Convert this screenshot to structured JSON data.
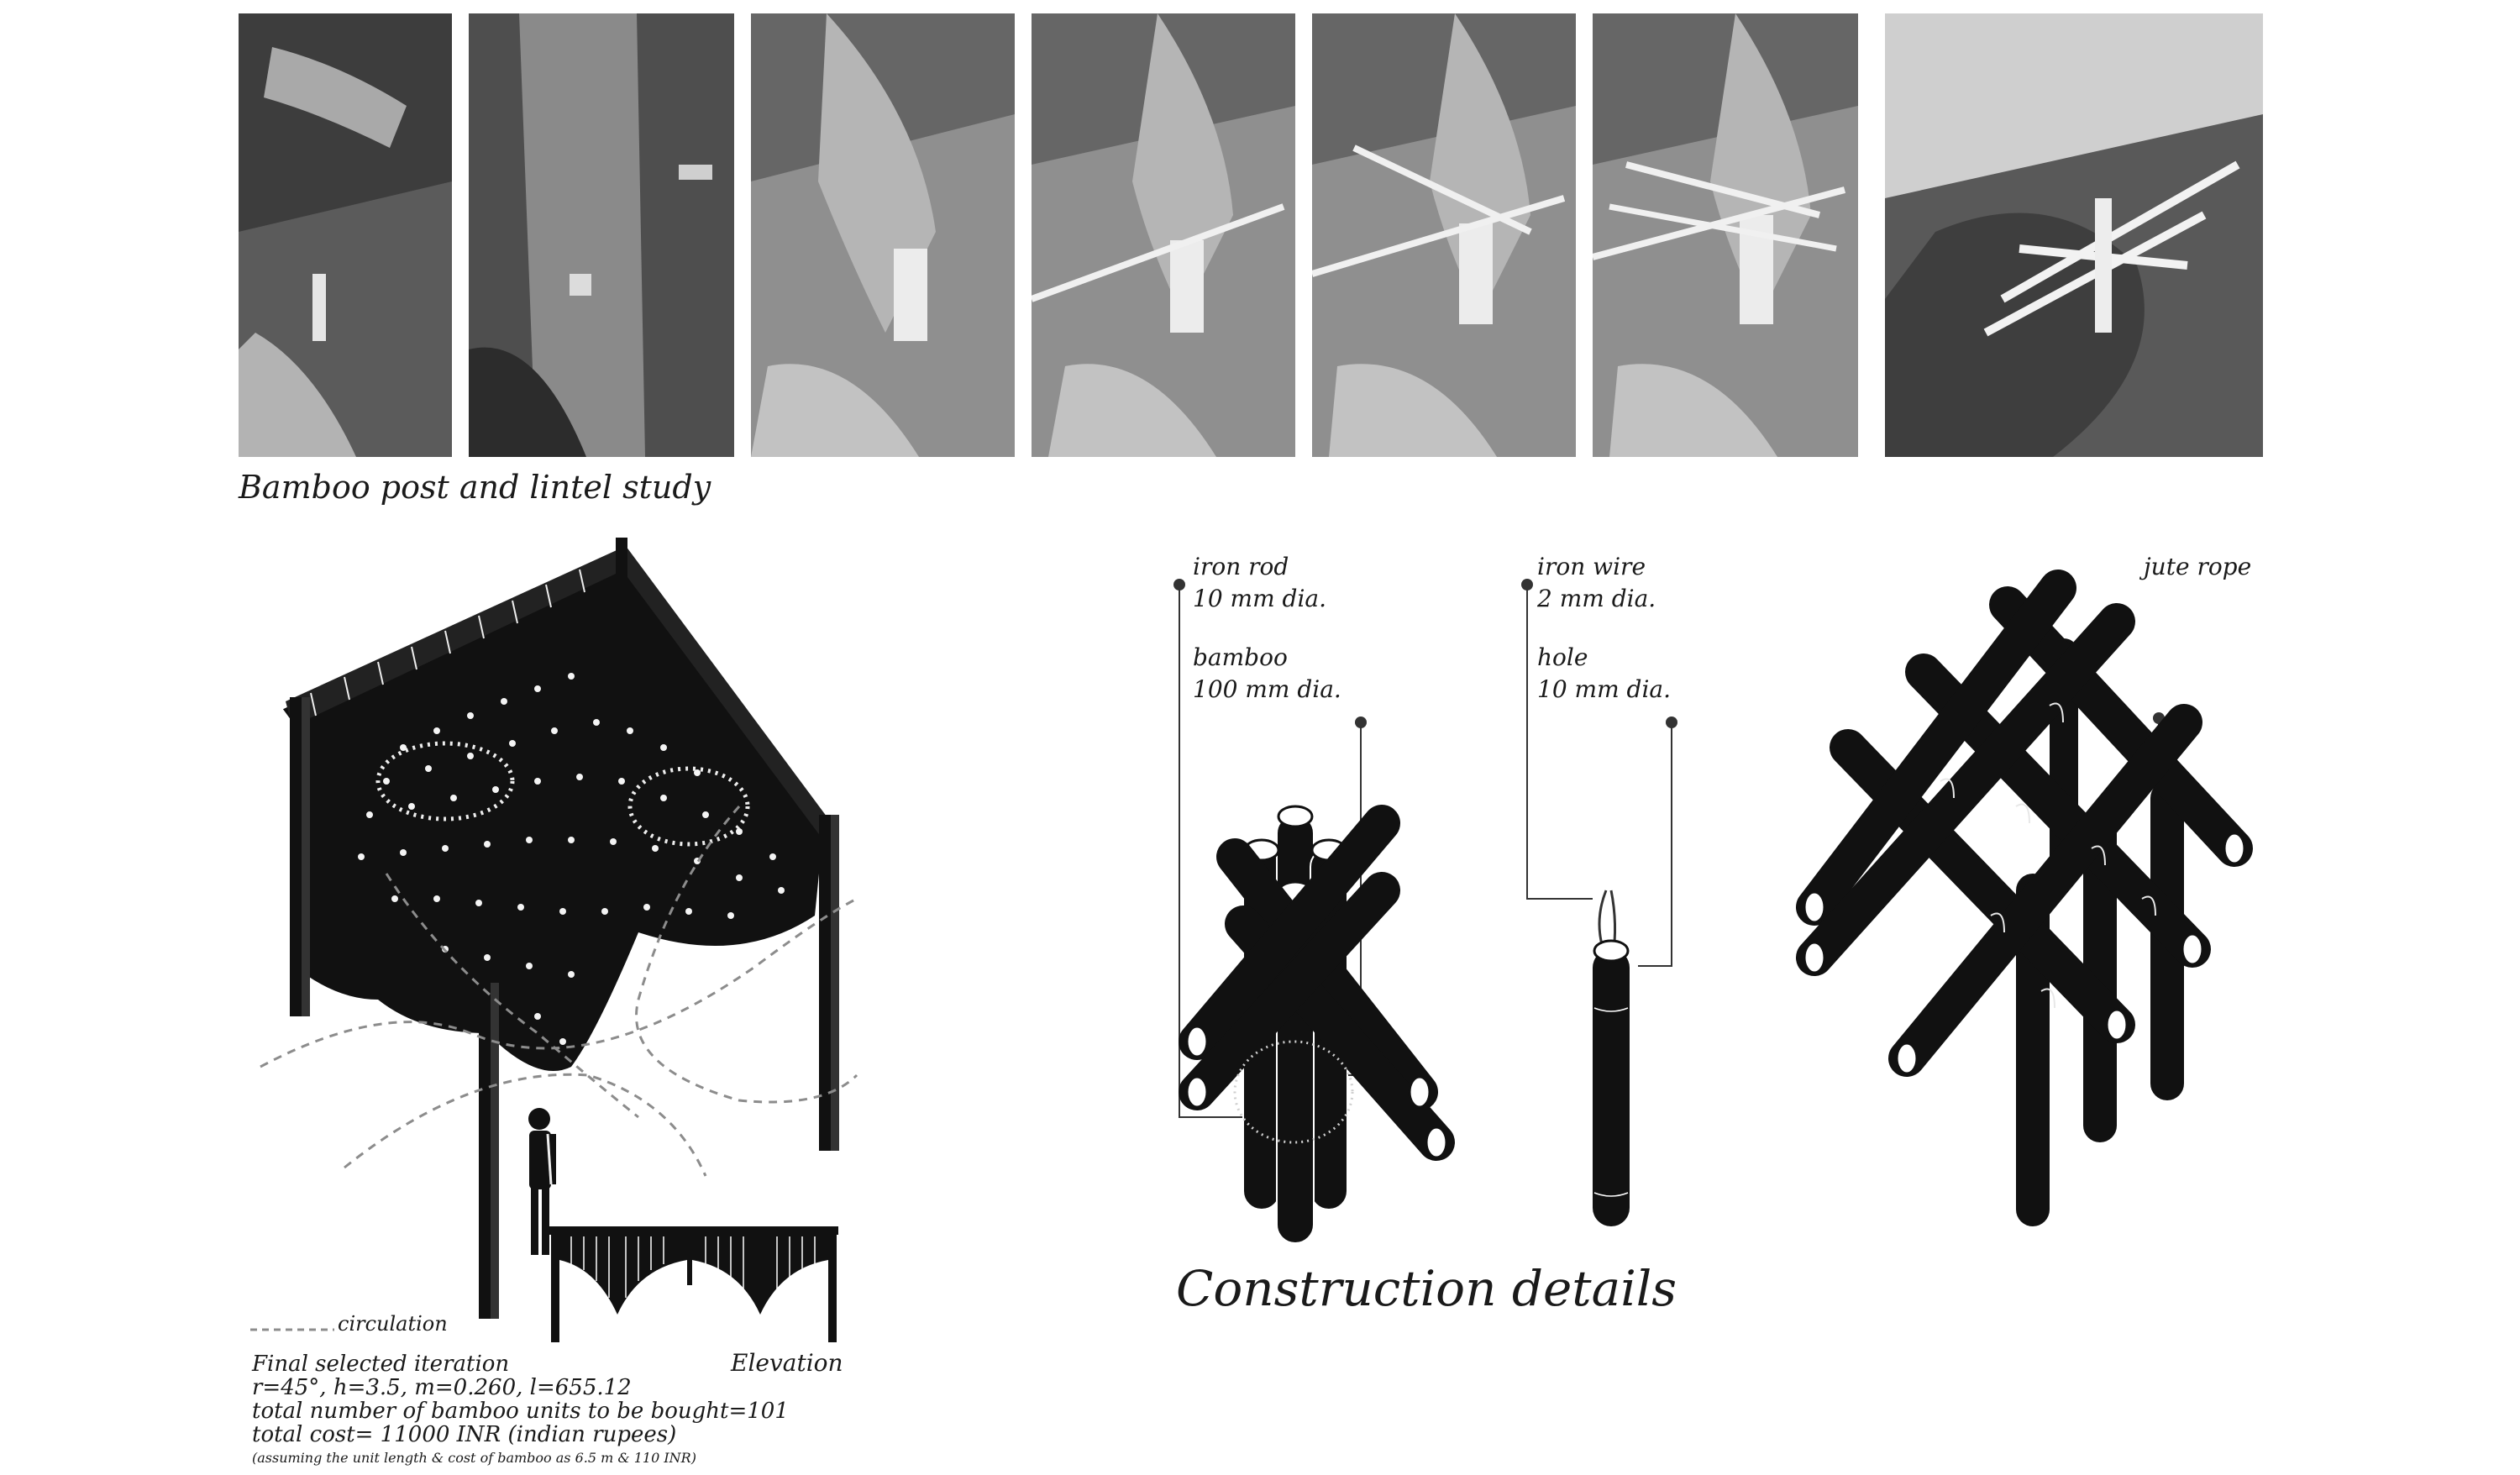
{
  "photos": [
    {
      "alt": "Hands holding bamboo sticks"
    },
    {
      "alt": "Hand with small bundle"
    },
    {
      "alt": "Fingers holding bamboo bundle"
    },
    {
      "alt": "Inserting a long stick"
    },
    {
      "alt": "Adding crossing stick"
    },
    {
      "alt": "Two crossing sticks"
    },
    {
      "alt": "Completed post and lintel model"
    }
  ],
  "caption": "Bamboo post and lintel study",
  "section_title": "Construction details",
  "left": {
    "legend": "circulation",
    "elevation_label": "Elevation",
    "lines": [
      "Final selected iteration",
      "r=45°, h=3.5, m=0.260, l=655.12",
      "total number of  bamboo units to be bought=101",
      "total cost= 11000 INR (indian rupees)"
    ],
    "note": "(assuming the unit length & cost of bamboo as 6.5 m & 110 INR)"
  },
  "details": {
    "detail1": {
      "rod": "iron rod",
      "rod_dia": "10 mm dia.",
      "bamboo": "bamboo",
      "bamboo_dia": "100 mm dia."
    },
    "detail2": {
      "wire": "iron wire",
      "wire_dia": "2 mm dia.",
      "hole": "hole",
      "hole_dia": "10 mm dia."
    },
    "detail3": {
      "rope": "jute rope"
    }
  },
  "colors": {
    "ink": "#111111",
    "paper": "#ffffff",
    "dash": "#8c8c8c"
  }
}
